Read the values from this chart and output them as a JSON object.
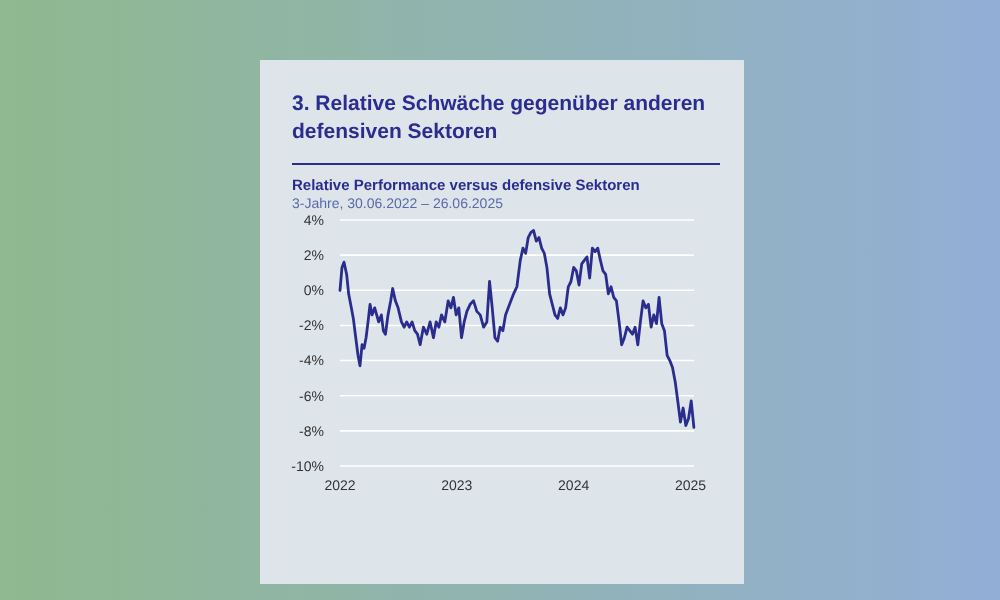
{
  "chart_data": {
    "type": "line",
    "title": "3. Relative Schwäche gegenüber anderen defensiven Sektoren",
    "subtitle": "Relative Performance versus defensive Sektoren",
    "annotations": [
      "3-Jahre, 30.06.2022 – 26.06.2025"
    ],
    "series": [
      {
        "color": "#2b2d8e",
        "x": [
          2022.0,
          2022.017,
          2022.034,
          2022.057,
          2022.074,
          2022.097,
          2022.114,
          2022.131,
          2022.154,
          2022.171,
          2022.189,
          2022.206,
          2022.223,
          2022.24,
          2022.257,
          2022.274,
          2022.297,
          2022.314,
          2022.331,
          2022.354,
          2022.371,
          2022.389,
          2022.411,
          2022.434,
          2022.451,
          2022.474,
          2022.497,
          2022.526,
          2022.549,
          2022.571,
          2022.594,
          2022.617,
          2022.64,
          2022.663,
          2022.686,
          2022.714,
          2022.743,
          2022.771,
          2022.8,
          2022.823,
          2022.846,
          2022.869,
          2022.897,
          2022.926,
          2022.949,
          2022.971,
          2022.994,
          2023.017,
          2023.04,
          2023.063,
          2023.086,
          2023.114,
          2023.143,
          2023.171,
          2023.2,
          2023.229,
          2023.257,
          2023.28,
          2023.303,
          2023.326,
          2023.349,
          2023.371,
          2023.394,
          2023.417,
          2023.44,
          2023.463,
          2023.486,
          2023.514,
          2023.543,
          2023.566,
          2023.589,
          2023.611,
          2023.634,
          2023.657,
          2023.68,
          2023.703,
          2023.726,
          2023.749,
          2023.771,
          2023.794,
          2023.817,
          2023.84,
          2023.863,
          2023.886,
          2023.909,
          2023.931,
          2023.954,
          2023.977,
          2024.0,
          2024.023,
          2024.046,
          2024.069,
          2024.091,
          2024.114,
          2024.137,
          2024.16,
          2024.183,
          2024.206,
          2024.229,
          2024.251,
          2024.274,
          2024.297,
          2024.32,
          2024.343,
          2024.366,
          2024.389,
          2024.411,
          2024.434,
          2024.457,
          2024.48,
          2024.503,
          2024.526,
          2024.549,
          2024.571,
          2024.594,
          2024.617,
          2024.64,
          2024.663,
          2024.686,
          2024.709,
          2024.731,
          2024.754,
          2024.777,
          2024.8,
          2024.823,
          2024.846,
          2024.869,
          2024.891,
          2024.914,
          2024.937,
          2024.96,
          2024.983,
          2025.006,
          2025.029
        ],
        "values": [
          0.0,
          1.3,
          1.6,
          0.9,
          -0.2,
          -1.0,
          -1.6,
          -2.5,
          -3.7,
          -4.3,
          -3.1,
          -3.3,
          -2.7,
          -1.8,
          -0.8,
          -1.4,
          -1.0,
          -1.4,
          -1.8,
          -1.4,
          -2.3,
          -2.5,
          -1.4,
          -0.6,
          0.1,
          -0.6,
          -1.0,
          -1.8,
          -2.1,
          -1.8,
          -2.1,
          -1.8,
          -2.3,
          -2.5,
          -3.1,
          -2.1,
          -2.5,
          -1.8,
          -2.7,
          -1.8,
          -2.1,
          -1.4,
          -1.8,
          -0.6,
          -1.0,
          -0.4,
          -1.4,
          -1.0,
          -2.7,
          -1.8,
          -1.2,
          -0.8,
          -0.6,
          -1.2,
          -1.4,
          -2.1,
          -1.8,
          0.5,
          -1.0,
          -2.7,
          -2.9,
          -2.1,
          -2.3,
          -1.4,
          -1.0,
          -0.6,
          -0.2,
          0.2,
          1.7,
          2.4,
          2.1,
          3.0,
          3.3,
          3.4,
          2.8,
          3.0,
          2.4,
          2.1,
          1.3,
          -0.2,
          -0.8,
          -1.4,
          -1.6,
          -1.0,
          -1.4,
          -1.0,
          0.2,
          0.5,
          1.3,
          1.1,
          0.3,
          1.5,
          1.7,
          1.9,
          0.7,
          2.4,
          2.2,
          2.4,
          1.7,
          1.1,
          0.9,
          -0.2,
          0.2,
          -0.4,
          -0.6,
          -1.8,
          -3.1,
          -2.7,
          -2.1,
          -2.3,
          -2.5,
          -2.1,
          -3.1,
          -1.8,
          -0.6,
          -1.0,
          -0.8,
          -2.1,
          -1.4,
          -1.9,
          -0.4,
          -1.9,
          -2.3,
          -3.7,
          -4.0,
          -4.4,
          -5.2,
          -6.3,
          -7.5,
          -6.7,
          -7.7,
          -7.3,
          -6.3,
          -7.8
        ]
      }
    ],
    "xlim": [
      2022,
      2025.03
    ],
    "xticks": [
      2022,
      2023,
      2024,
      2025
    ],
    "ylim": [
      -10,
      4
    ],
    "yticks": [
      {
        "value": 4,
        "label": "4%"
      },
      {
        "value": 2,
        "label": "2%"
      },
      {
        "value": 0,
        "label": "0%"
      },
      {
        "value": -2,
        "label": "-2%"
      },
      {
        "value": -4,
        "label": "-4%"
      },
      {
        "value": -6,
        "label": "-6%"
      },
      {
        "value": -8,
        "label": "-8%"
      },
      {
        "value": -10,
        "label": "-10%"
      }
    ],
    "grid": "y",
    "line_style": "solid"
  }
}
